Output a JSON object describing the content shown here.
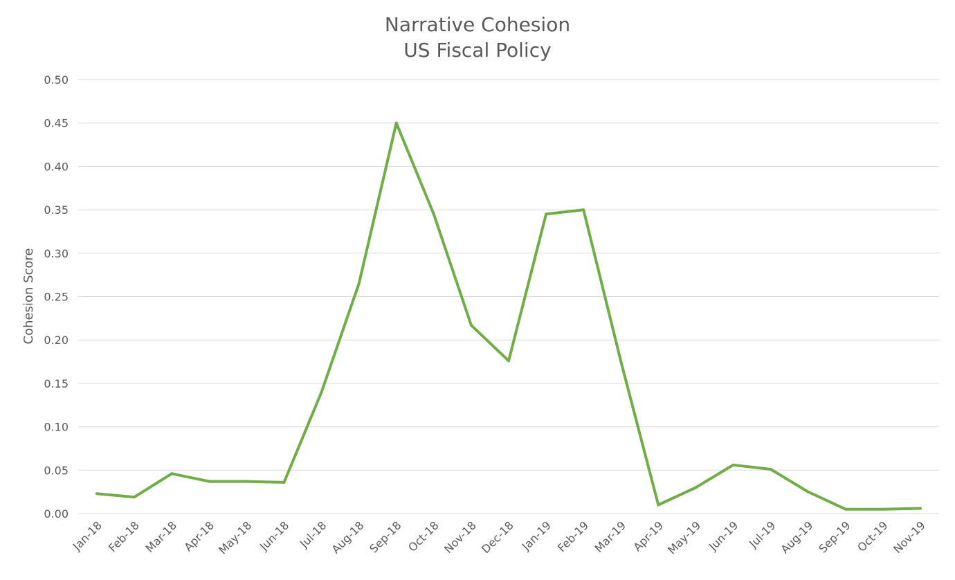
{
  "chart_data": {
    "type": "line",
    "title": [
      "Narrative Cohesion",
      "US Fiscal Policy"
    ],
    "xlabel": "",
    "ylabel": "Cohesion Score",
    "categories": [
      "Jan-18",
      "Feb-18",
      "Mar-18",
      "Apr-18",
      "May-18",
      "Jun-18",
      "Jul-18",
      "Aug-18",
      "Sep-18",
      "Oct-18",
      "Nov-18",
      "Dec-18",
      "Jan-19",
      "Feb-19",
      "Mar-19",
      "Apr-19",
      "May-19",
      "Jun-19",
      "Jul-19",
      "Aug-19",
      "Sep-19",
      "Oct-19",
      "Nov-19"
    ],
    "series": [
      {
        "values": [
          0.023,
          0.019,
          0.046,
          0.037,
          0.037,
          0.036,
          0.14,
          0.265,
          0.45,
          0.345,
          0.217,
          0.176,
          0.345,
          0.35,
          0.175,
          0.01,
          0.03,
          0.056,
          0.051,
          0.025,
          0.005,
          0.005,
          0.006
        ],
        "color": "#70ad47"
      }
    ],
    "ylim": [
      0,
      0.5
    ],
    "yticks": [
      "0.00",
      "0.05",
      "0.10",
      "0.15",
      "0.20",
      "0.25",
      "0.30",
      "0.35",
      "0.40",
      "0.45",
      "0.50"
    ],
    "grid": true,
    "legend": "none"
  }
}
